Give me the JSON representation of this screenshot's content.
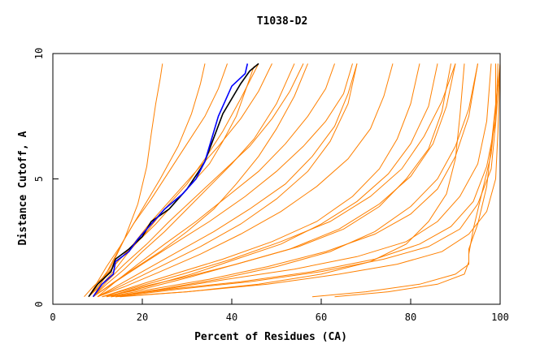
{
  "chart_data": {
    "type": "line",
    "title": "T1038-D2",
    "xlabel": "Percent of Residues (CA)",
    "ylabel": "Distance Cutoff, A",
    "xlim": [
      0,
      100
    ],
    "ylim": [
      0,
      10
    ],
    "x_ticks": [
      "0",
      "20",
      "40",
      "60",
      "80",
      "100"
    ],
    "y_ticks": [
      "0",
      "5",
      "10"
    ],
    "grid": false,
    "legend": "none",
    "colors": {
      "models": "#ff8000",
      "highlight_a": "#000000",
      "highlight_b": "#0000ff",
      "axes": "#000000"
    },
    "series": [
      {
        "x": [
          8.0,
          10.0,
          13.0,
          14.0,
          17.0,
          20.0,
          22.0,
          26.0,
          30.0,
          33.0,
          34.0,
          38.0,
          42.0,
          44.0,
          46.0
        ],
        "y": [
          0.3,
          0.8,
          1.3,
          1.8,
          2.2,
          2.7,
          3.3,
          3.8,
          4.6,
          5.4,
          5.7,
          7.6,
          8.8,
          9.3,
          9.6
        ]
      },
      {
        "x": [
          9.0,
          11.0,
          13.5,
          14.0,
          17.0,
          19.0,
          22.0,
          25.0,
          29.0,
          32.0,
          34.0,
          37.0,
          40.0,
          43.0,
          43.5
        ],
        "y": [
          0.3,
          0.8,
          1.2,
          1.7,
          2.1,
          2.6,
          3.2,
          3.8,
          4.4,
          5.0,
          5.7,
          7.5,
          8.7,
          9.2,
          9.6
        ]
      },
      {
        "x": [
          7.0,
          9.0,
          12.0,
          15.0,
          19.0,
          23.0,
          27.0,
          31.0,
          35.0,
          38.0,
          41.0,
          43.0,
          45.0
        ],
        "y": [
          0.3,
          0.7,
          1.2,
          1.8,
          2.5,
          3.2,
          4.0,
          4.8,
          5.6,
          6.5,
          7.5,
          8.5,
          9.5
        ]
      },
      {
        "x": [
          8.0,
          10.0,
          13.0,
          16.0,
          19.0,
          21.0,
          22.0,
          23.0,
          24.0,
          24.5
        ],
        "y": [
          0.3,
          0.8,
          1.5,
          2.6,
          4.0,
          5.5,
          6.8,
          8.0,
          9.0,
          9.6
        ]
      },
      {
        "x": [
          8.0,
          11.0,
          14.0,
          17.0,
          21.0,
          25.0,
          30.0,
          34.0,
          38.0,
          42.0,
          46.0
        ],
        "y": [
          0.3,
          0.8,
          1.4,
          2.1,
          2.9,
          3.8,
          4.8,
          5.8,
          6.9,
          8.2,
          9.6
        ]
      },
      {
        "x": [
          9.0,
          12.0,
          16.0,
          20.0,
          25.0,
          30.0,
          35.0,
          40.0,
          45.0,
          50.0,
          54.0
        ],
        "y": [
          0.3,
          0.8,
          1.4,
          2.1,
          2.9,
          3.8,
          4.7,
          5.6,
          6.6,
          8.0,
          9.6
        ]
      },
      {
        "x": [
          9.0,
          13.0,
          18.0,
          24.0,
          30.0,
          36.0,
          41.0,
          46.0,
          50.0,
          54.0,
          57.0
        ],
        "y": [
          0.3,
          0.8,
          1.4,
          2.1,
          2.9,
          3.8,
          4.8,
          5.9,
          7.0,
          8.3,
          9.6
        ]
      },
      {
        "x": [
          10.0,
          16.0,
          24.0,
          33.0,
          42.0,
          50.0,
          57.0,
          62.0,
          66.0,
          68.0
        ],
        "y": [
          0.3,
          0.8,
          1.5,
          2.3,
          3.2,
          4.2,
          5.3,
          6.5,
          8.0,
          9.6
        ]
      },
      {
        "x": [
          10.0,
          16.0,
          24.0,
          33.0,
          42.0,
          51.0,
          59.0,
          66.0,
          71.0,
          74.0,
          76.0
        ],
        "y": [
          0.3,
          0.7,
          1.3,
          2.0,
          2.8,
          3.7,
          4.7,
          5.8,
          7.0,
          8.3,
          9.6
        ]
      },
      {
        "x": [
          11.0,
          18.0,
          27.0,
          38.0,
          49.0,
          59.0,
          67.0,
          73.0,
          77.0,
          80.0,
          82.0
        ],
        "y": [
          0.3,
          0.7,
          1.2,
          1.8,
          2.5,
          3.3,
          4.3,
          5.4,
          6.6,
          8.0,
          9.6
        ]
      },
      {
        "x": [
          11.0,
          20.0,
          31.0,
          43.0,
          55.0,
          65.0,
          73.0,
          79.0,
          84.0,
          87.0,
          89.0
        ],
        "y": [
          0.3,
          0.6,
          1.1,
          1.7,
          2.3,
          3.0,
          3.9,
          5.0,
          6.2,
          7.7,
          9.6
        ]
      },
      {
        "x": [
          12.0,
          22.0,
          35.0,
          48.0,
          61.0,
          72.0,
          80.0,
          86.0,
          90.0,
          93.0,
          95.0
        ],
        "y": [
          0.3,
          0.6,
          1.0,
          1.5,
          2.1,
          2.8,
          3.6,
          4.6,
          5.9,
          7.5,
          9.6
        ]
      },
      {
        "x": [
          13.0,
          25.0,
          39.0,
          54.0,
          68.0,
          79.0,
          86.0,
          91.0,
          95.0,
          97.0,
          98.0
        ],
        "y": [
          0.3,
          0.6,
          1.0,
          1.4,
          1.9,
          2.5,
          3.3,
          4.3,
          5.6,
          7.3,
          9.6
        ]
      },
      {
        "x": [
          14.0,
          28.0,
          44.0,
          60.0,
          74.0,
          84.0,
          91.0,
          95.0,
          98.0,
          99.0,
          100.0
        ],
        "y": [
          0.3,
          0.6,
          0.9,
          1.3,
          1.8,
          2.3,
          3.0,
          4.0,
          5.4,
          7.2,
          9.6
        ]
      },
      {
        "x": [
          12.0,
          21.0,
          31.0,
          41.0,
          51.0,
          60.0,
          68.0,
          75.0,
          80.0,
          84.0,
          86.0
        ],
        "y": [
          0.3,
          0.7,
          1.2,
          1.8,
          2.4,
          3.2,
          4.1,
          5.2,
          6.4,
          7.9,
          9.6
        ]
      },
      {
        "x": [
          10.0,
          15.0,
          21.0,
          28.0,
          36.0,
          44.0,
          52.0,
          58.0,
          63.0,
          66.0,
          68.0
        ],
        "y": [
          0.3,
          0.8,
          1.4,
          2.1,
          2.9,
          3.8,
          4.8,
          5.9,
          7.1,
          8.4,
          9.6
        ]
      },
      {
        "x": [
          9.0,
          14.0,
          20.0,
          27.0,
          35.0,
          43.0,
          50.0,
          56.0,
          61.0,
          65.0,
          67.0
        ],
        "y": [
          0.3,
          0.9,
          1.6,
          2.4,
          3.3,
          4.3,
          5.3,
          6.3,
          7.3,
          8.4,
          9.6
        ]
      },
      {
        "x": [
          14.0,
          30.0,
          48.0,
          64.0,
          77.0,
          87.0,
          93.0,
          97.0,
          99.0,
          99.5,
          100.0
        ],
        "y": [
          0.3,
          0.5,
          0.8,
          1.2,
          1.6,
          2.1,
          2.8,
          3.7,
          5.0,
          6.9,
          9.6
        ]
      },
      {
        "x": [
          13.0,
          26.0,
          42.0,
          58.0,
          72.0,
          82.0,
          89.0,
          94.0,
          97.0,
          99.0,
          99.5
        ],
        "y": [
          0.3,
          0.6,
          0.9,
          1.3,
          1.8,
          2.4,
          3.1,
          4.1,
          5.5,
          7.3,
          9.6
        ]
      },
      {
        "x": [
          11.0,
          19.0,
          29.0,
          40.0,
          51.0,
          62.0,
          71.0,
          78.0,
          83.0,
          87.0,
          90.0
        ],
        "y": [
          0.3,
          0.7,
          1.2,
          1.8,
          2.5,
          3.3,
          4.3,
          5.4,
          6.7,
          8.1,
          9.6
        ]
      },
      {
        "x": [
          10.0,
          14.0,
          19.0,
          25.0,
          32.0,
          39.0,
          46.0,
          52.0,
          57.0,
          61.0,
          63.0
        ],
        "y": [
          0.3,
          0.9,
          1.6,
          2.4,
          3.3,
          4.3,
          5.3,
          6.4,
          7.5,
          8.6,
          9.6
        ]
      },
      {
        "x": [
          9.0,
          12.0,
          16.0,
          21.0,
          26.0,
          32.0,
          38.0,
          44.0,
          49.0,
          53.0,
          56.0
        ],
        "y": [
          0.3,
          0.9,
          1.6,
          2.4,
          3.3,
          4.3,
          5.3,
          6.3,
          7.4,
          8.5,
          9.6
        ]
      },
      {
        "x": [
          8.0,
          11.0,
          14.0,
          18.0,
          22.0,
          27.0,
          32.0,
          37.0,
          42.0,
          46.0,
          49.0
        ],
        "y": [
          0.3,
          0.9,
          1.6,
          2.4,
          3.3,
          4.3,
          5.3,
          6.3,
          7.4,
          8.5,
          9.6
        ]
      },
      {
        "x": [
          9.0,
          11.0,
          13.0,
          16.0,
          20.0,
          24.0,
          28.0,
          31.0,
          33.0,
          34.0
        ],
        "y": [
          0.3,
          0.9,
          1.6,
          2.6,
          3.8,
          5.0,
          6.3,
          7.6,
          8.8,
          9.6
        ]
      },
      {
        "x": [
          8.0,
          10.0,
          12.0,
          15.0,
          18.0,
          22.0,
          26.0,
          30.0,
          34.0,
          37.0,
          39.0
        ],
        "y": [
          0.3,
          0.9,
          1.5,
          2.3,
          3.2,
          4.2,
          5.3,
          6.4,
          7.5,
          8.6,
          9.6
        ]
      },
      {
        "x": [
          15.0,
          30.0,
          46.0,
          60.0,
          71.0,
          79.0,
          84.0,
          88.0,
          90.0,
          91.0,
          92.0
        ],
        "y": [
          0.3,
          0.5,
          0.8,
          1.2,
          1.7,
          2.4,
          3.3,
          4.4,
          5.8,
          7.5,
          9.6
        ]
      },
      {
        "x": [
          13.0,
          24.0,
          37.0,
          50.0,
          62.0,
          72.0,
          80.0,
          86.0,
          90.0,
          93.0,
          95.0
        ],
        "y": [
          0.3,
          0.6,
          1.0,
          1.5,
          2.1,
          2.9,
          3.9,
          5.0,
          6.3,
          7.8,
          9.6
        ]
      },
      {
        "x": [
          12.0,
          20.0,
          30.0,
          41.0,
          53.0,
          64.0,
          73.0,
          80.0,
          85.0,
          88.0,
          90.0
        ],
        "y": [
          0.3,
          0.7,
          1.1,
          1.6,
          2.2,
          3.0,
          4.0,
          5.1,
          6.4,
          7.9,
          9.6
        ]
      },
      {
        "x": [
          58.0,
          70.0,
          82.0,
          90.0,
          93.0,
          93.0,
          94.0,
          96.0,
          98.0,
          99.0,
          99.0
        ],
        "y": [
          0.3,
          0.5,
          0.8,
          1.2,
          1.6,
          2.0,
          3.0,
          4.5,
          6.0,
          7.8,
          9.6
        ]
      },
      {
        "x": [
          63.0,
          75.0,
          86.0,
          92.0,
          93.0,
          93.0,
          95.0,
          97.0,
          98.0,
          99.0,
          100.0
        ],
        "y": [
          0.3,
          0.5,
          0.8,
          1.2,
          1.7,
          2.2,
          3.2,
          4.7,
          6.3,
          8.0,
          9.6
        ]
      }
    ]
  }
}
